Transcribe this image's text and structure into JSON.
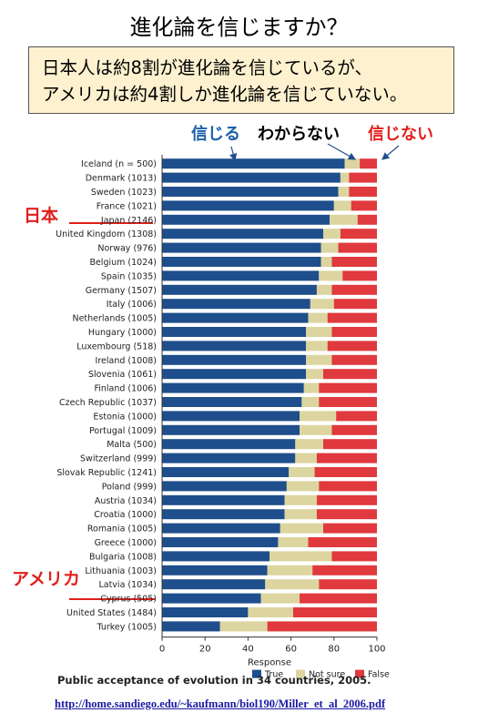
{
  "title": "進化論を信じますか？",
  "callout": {
    "line1": "日本人は約8割が進化論を信じているが、",
    "line2": "アメリカは約4割しか進化論を信じていない。"
  },
  "headers": {
    "true": "信じる",
    "not_sure": "わからない",
    "false": "信じない"
  },
  "side_labels": {
    "japan": "日本",
    "usa": "アメリカ"
  },
  "caption": "Public acceptance of evolution in 34 countries, 2005.",
  "link": "http://home.sandiego.edu/~kaufmann/biol190/Miller_et_al_2006.pdf",
  "colors": {
    "true": "#1f4e8c",
    "not_sure": "#dcd5a0",
    "false": "#e0393e"
  },
  "chart_data": {
    "type": "bar",
    "orientation": "horizontal",
    "stacked": true,
    "xlabel": "Response",
    "xlim": [
      0,
      100
    ],
    "xticks": [
      "0",
      "20",
      "40",
      "60",
      "80",
      "100"
    ],
    "legend": [
      "True",
      "Not sure",
      "False"
    ],
    "legend_position": "bottom",
    "categories": [
      "Iceland (n = 500)",
      "Denmark (1013)",
      "Sweden (1023)",
      "France (1021)",
      "Japan (2146)",
      "United Kingdom (1308)",
      "Norway (976)",
      "Belgium (1024)",
      "Spain (1035)",
      "Germany (1507)",
      "Italy (1006)",
      "Netherlands (1005)",
      "Hungary (1000)",
      "Luxembourg (518)",
      "Ireland (1008)",
      "Slovenia (1061)",
      "Finland (1006)",
      "Czech Republic (1037)",
      "Estonia (1000)",
      "Portugal (1009)",
      "Malta (500)",
      "Switzerland (999)",
      "Slovak Republic (1241)",
      "Poland (999)",
      "Austria (1034)",
      "Croatia (1000)",
      "Romania (1005)",
      "Greece (1000)",
      "Bulgaria (1008)",
      "Lithuania (1003)",
      "Latvia (1034)",
      "Cyprus (505)",
      "United States (1484)",
      "Turkey (1005)"
    ],
    "series": [
      {
        "name": "True",
        "values": [
          85,
          83,
          82,
          80,
          78,
          75,
          74,
          74,
          73,
          72,
          69,
          68,
          67,
          67,
          67,
          67,
          66,
          65,
          64,
          64,
          62,
          62,
          59,
          58,
          57,
          57,
          55,
          54,
          50,
          49,
          48,
          46,
          40,
          27
        ]
      },
      {
        "name": "Not sure",
        "values": [
          7,
          4,
          5,
          8,
          13,
          8,
          8,
          5,
          11,
          7,
          11,
          9,
          12,
          10,
          12,
          8,
          7,
          8,
          17,
          15,
          13,
          10,
          12,
          15,
          15,
          15,
          20,
          14,
          29,
          21,
          25,
          18,
          21,
          22
        ]
      },
      {
        "name": "False",
        "values": [
          8,
          13,
          13,
          12,
          9,
          17,
          18,
          21,
          16,
          21,
          20,
          23,
          21,
          23,
          21,
          25,
          27,
          27,
          19,
          21,
          25,
          28,
          29,
          27,
          28,
          28,
          25,
          32,
          21,
          30,
          27,
          36,
          39,
          51
        ]
      }
    ]
  }
}
